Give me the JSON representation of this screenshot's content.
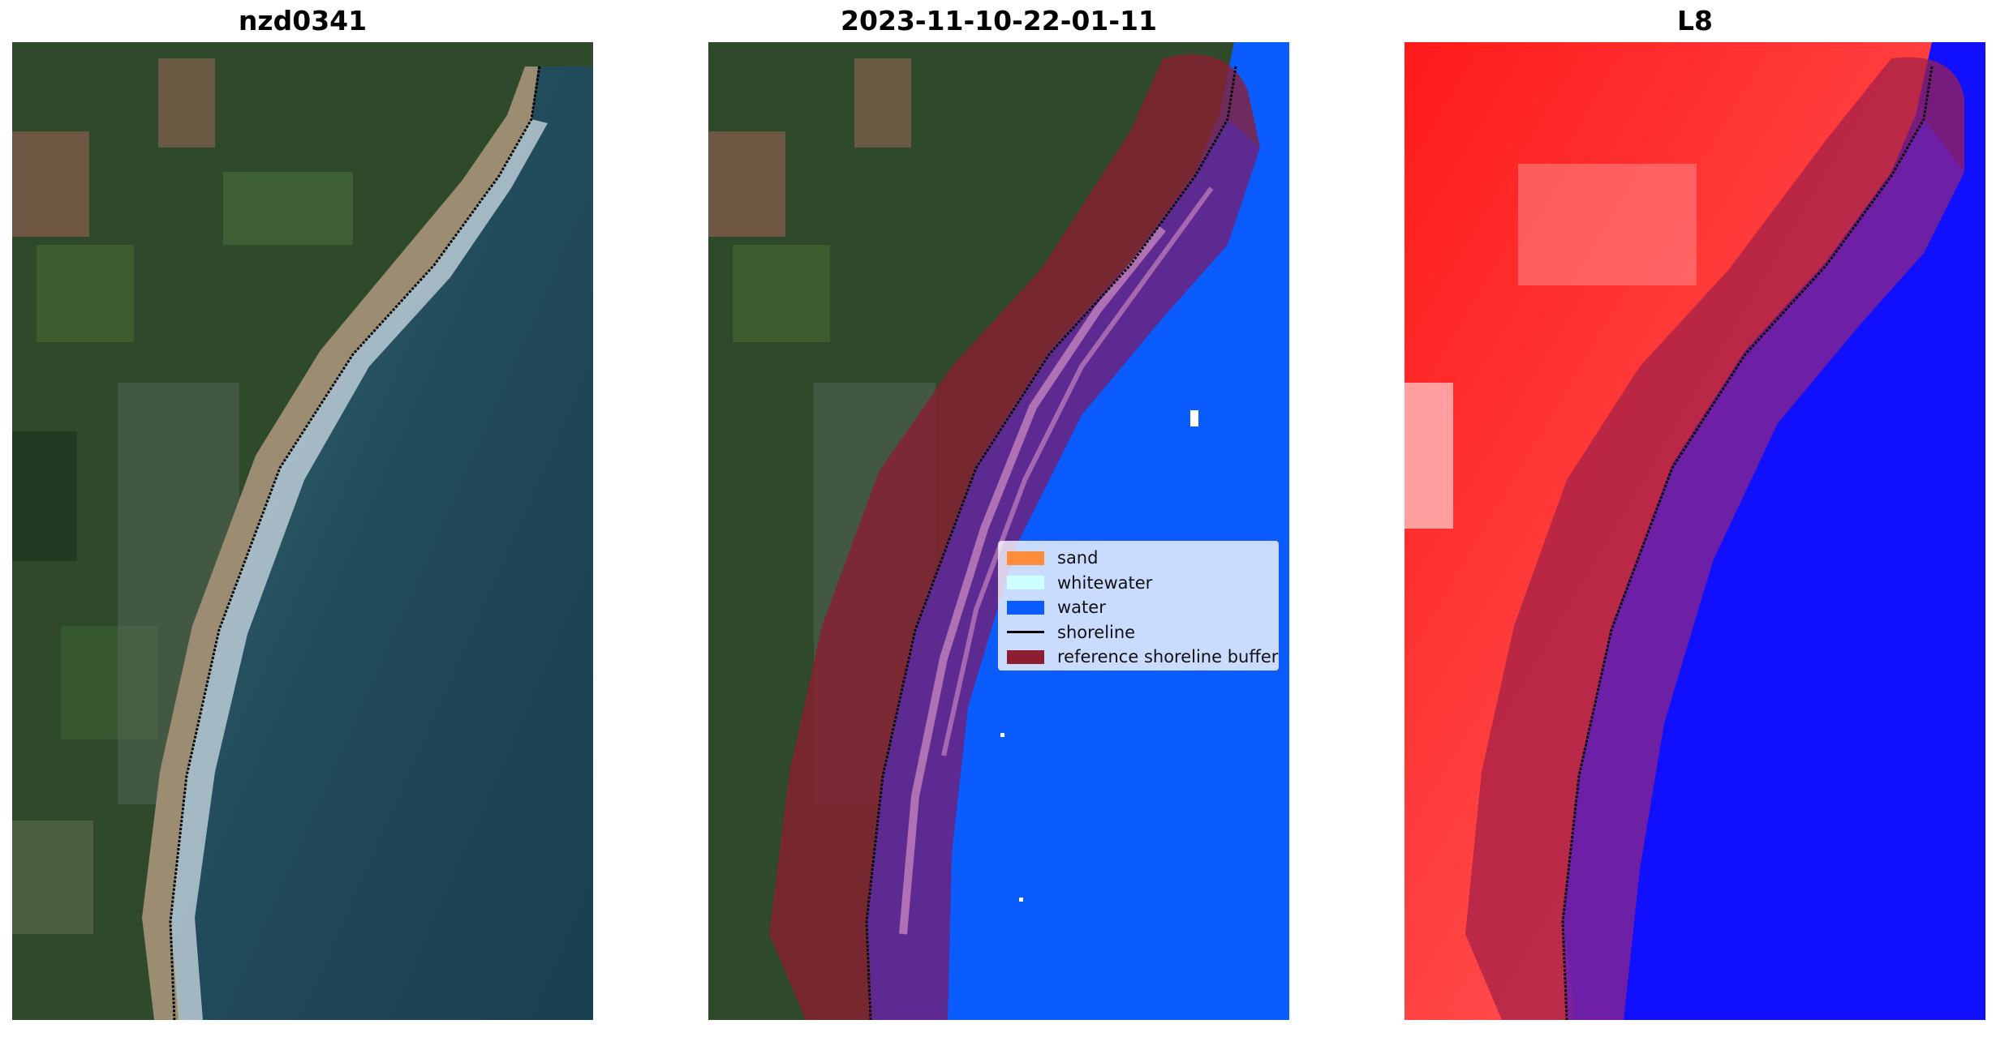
{
  "panels": [
    {
      "title": "nzd0341"
    },
    {
      "title": "2023-11-10-22-01-11"
    },
    {
      "title": "L8"
    }
  ],
  "legend": {
    "items": [
      {
        "label": "sand",
        "color": "#ff8c3a"
      },
      {
        "label": "whitewater",
        "color": "#ccffff"
      },
      {
        "label": "water",
        "color": "#0a5cff"
      },
      {
        "label": "shoreline",
        "color": "#000000"
      },
      {
        "label": "reference shoreline buffer",
        "color": "#8c1e32"
      }
    ]
  },
  "colors": {
    "land": "#2f4a2a",
    "ocean": "#1f4a5a",
    "beach": "#9c8c72",
    "surf": "#d8e6ee",
    "classified_water": "#0a5cff",
    "buffer": "#8c1e32",
    "index_land": "#ff2a2a",
    "index_water": "#1010ff"
  }
}
